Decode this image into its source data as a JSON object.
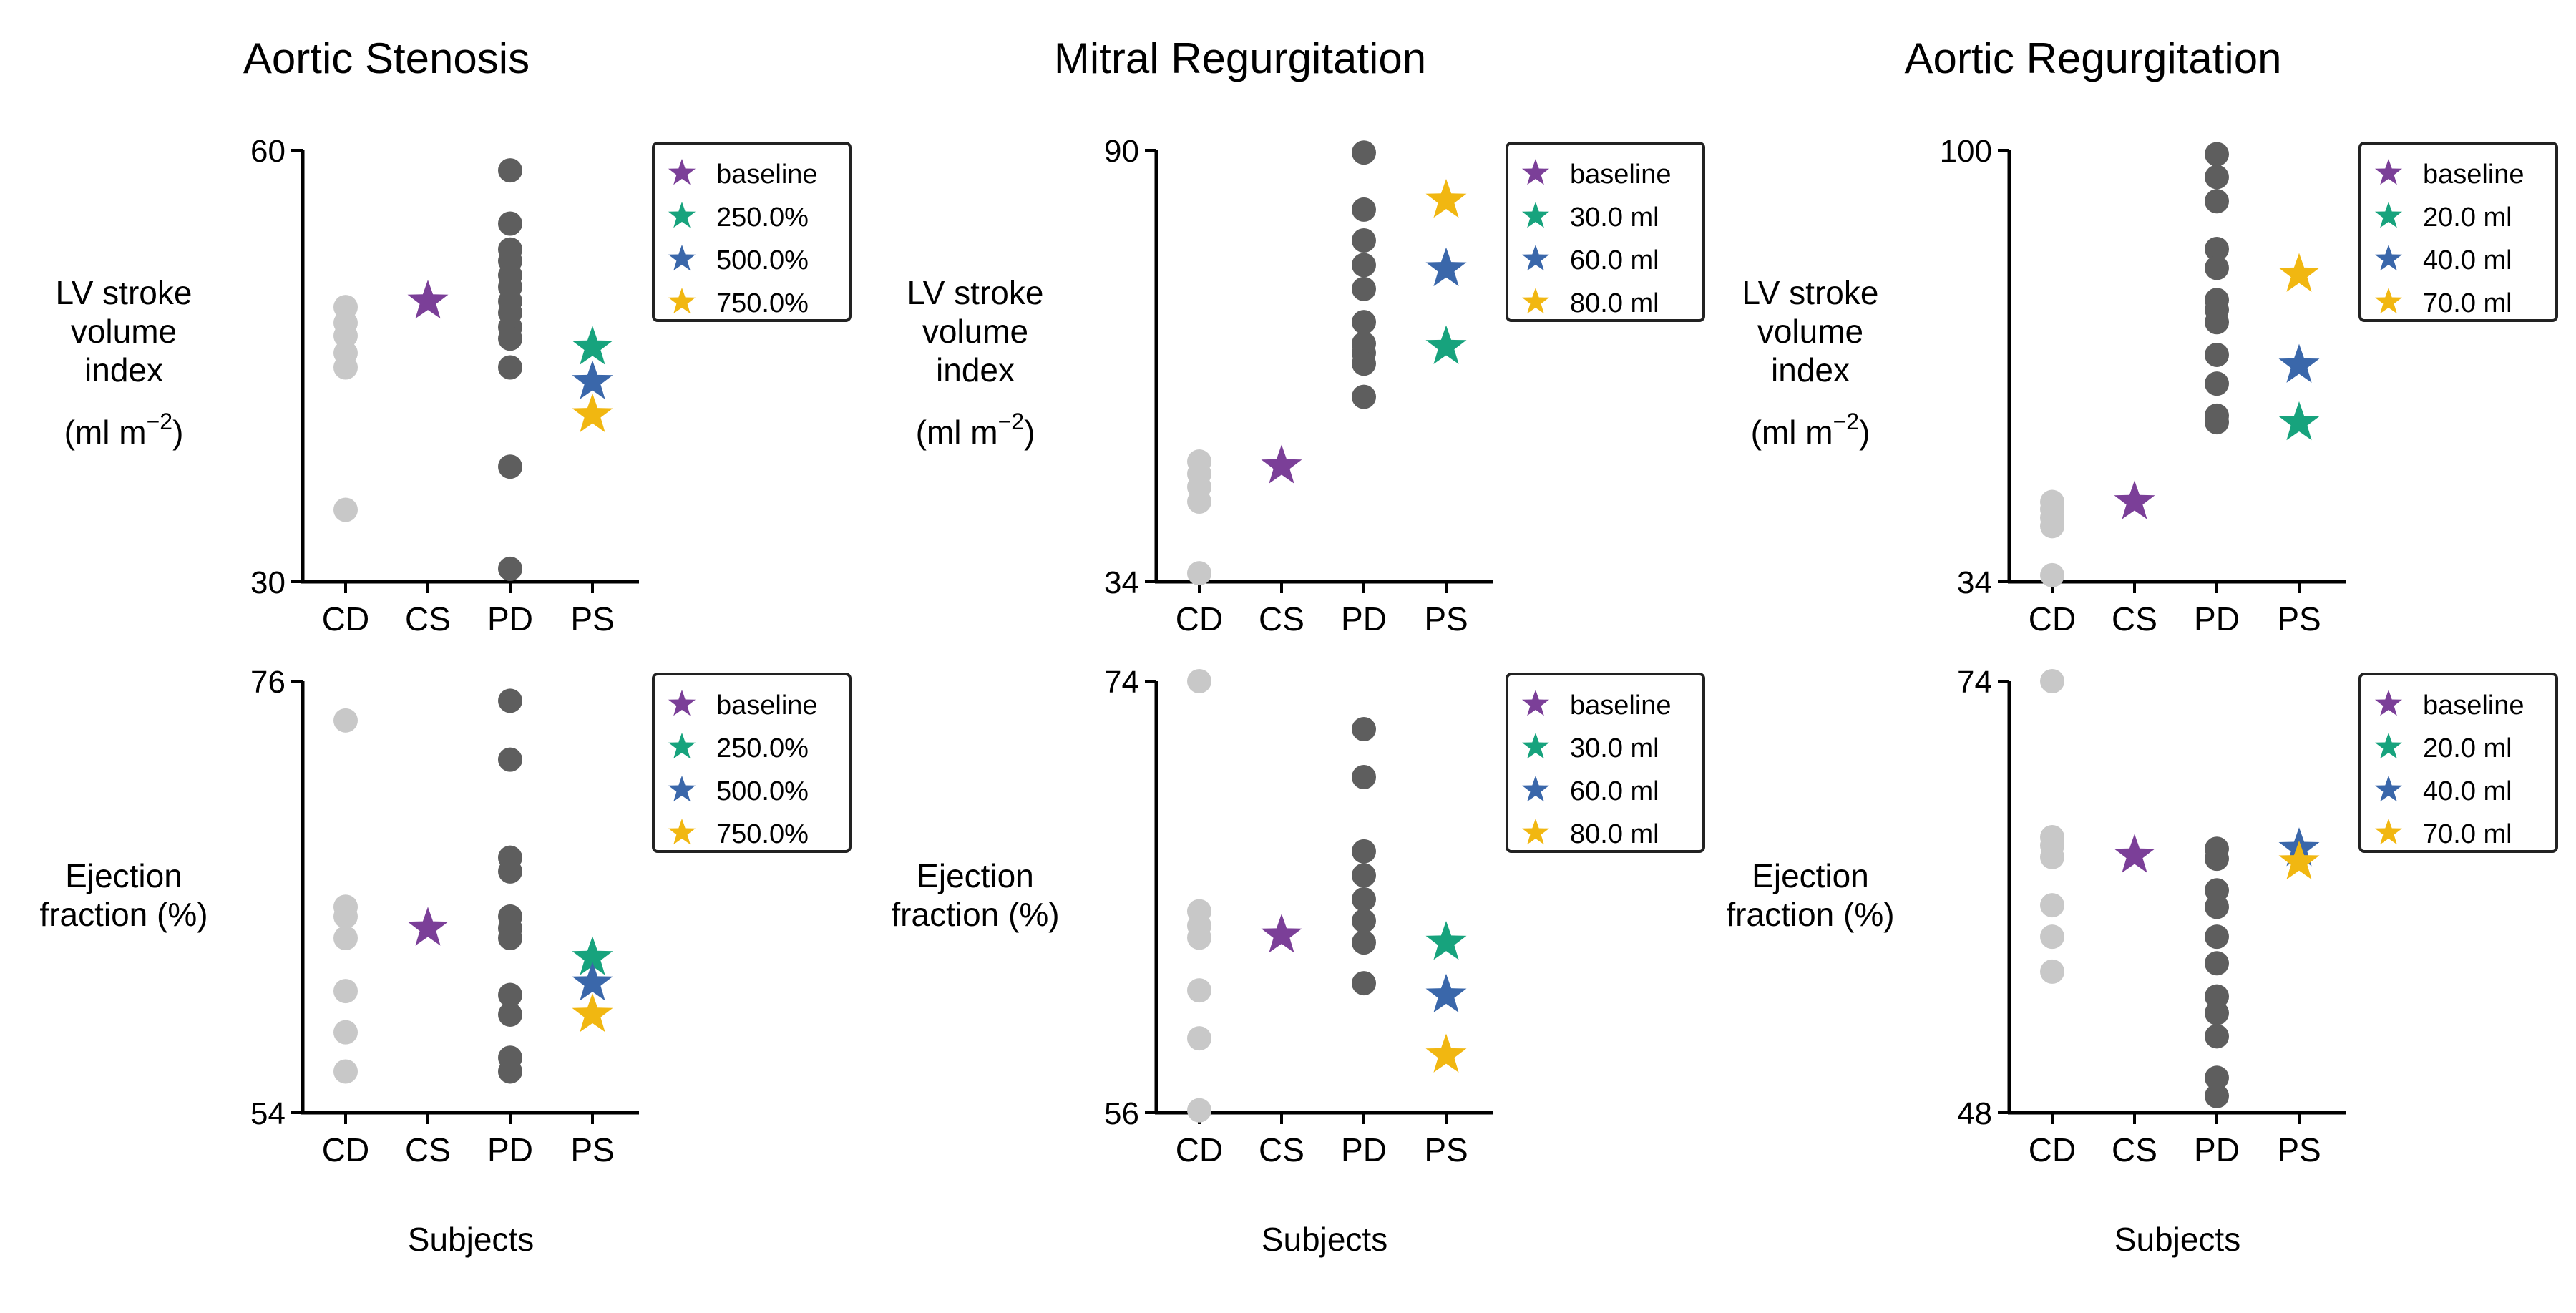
{
  "colors": {
    "control": "#c8c8c8",
    "patient": "#5e5e5e",
    "baseline": "#7b3f98",
    "level1": "#17a37d",
    "level2": "#3a67aa",
    "level3": "#f1b711",
    "axis": "#000000"
  },
  "shared_xlabel": "Subjects",
  "chart_data": [
    {
      "type": "scatter",
      "title": "Aortic Stenosis",
      "ylabel_lines": [
        "LV stroke",
        "volume",
        "index"
      ],
      "ylabel_unit": "(ml m",
      "ylabel_exp": "−2",
      "ylabel_close": ")",
      "categories": [
        "CD",
        "CS",
        "PD",
        "PS"
      ],
      "ylim": [
        30,
        60
      ],
      "yticks": [
        "30",
        "60"
      ],
      "CD": [
        49.1,
        48.0,
        47.1,
        45.9,
        44.9,
        35.0
      ],
      "CS": [
        49.5
      ],
      "PD": [
        58.6,
        54.9,
        53.1,
        52.3,
        51.3,
        50.5,
        49.5,
        48.7,
        47.7,
        46.9,
        44.9,
        38.0,
        30.9
      ],
      "PS": [
        {
          "legend_index": 1,
          "value": 46.3
        },
        {
          "legend_index": 2,
          "value": 43.9
        },
        {
          "legend_index": 3,
          "value": 41.6
        }
      ],
      "legend": [
        "baseline",
        "250.0%",
        "500.0%",
        "750.0%"
      ]
    },
    {
      "type": "scatter",
      "title": "Mitral Regurgitation",
      "ylabel_lines": [
        "LV stroke",
        "volume",
        "index"
      ],
      "ylabel_unit": "(ml m",
      "ylabel_exp": "−2",
      "ylabel_close": ")",
      "categories": [
        "CD",
        "CS",
        "PD",
        "PS"
      ],
      "ylim": [
        34,
        90
      ],
      "yticks": [
        "34",
        "90"
      ],
      "CD": [
        49.6,
        48.0,
        46.3,
        44.4,
        35.1
      ],
      "CS": [
        49.0
      ],
      "PD": [
        89.7,
        82.3,
        78.3,
        75.1,
        72.0,
        67.7,
        64.9,
        63.7,
        62.3,
        58.0
      ],
      "PS": [
        {
          "legend_index": 1,
          "value": 64.5
        },
        {
          "legend_index": 2,
          "value": 74.6
        },
        {
          "legend_index": 3,
          "value": 83.5
        }
      ],
      "legend": [
        "baseline",
        "30.0 ml",
        "60.0 ml",
        "80.0 ml"
      ]
    },
    {
      "type": "scatter",
      "title": "Aortic Regurgitation",
      "ylabel_lines": [
        "LV stroke",
        "volume",
        "index"
      ],
      "ylabel_unit": "(ml m",
      "ylabel_exp": "−2",
      "ylabel_close": ")",
      "categories": [
        "CD",
        "CS",
        "PD",
        "PS"
      ],
      "ylim": [
        34,
        100
      ],
      "yticks": [
        "34",
        "100"
      ],
      "CD": [
        46.2,
        45.1,
        43.8,
        42.5,
        35.0
      ],
      "CS": [
        46.2
      ],
      "PD": [
        99.4,
        95.9,
        92.2,
        84.9,
        82.0,
        77.1,
        75.6,
        73.7,
        68.7,
        64.3,
        59.4,
        58.4
      ],
      "PS": [
        {
          "legend_index": 1,
          "value": 58.3
        },
        {
          "legend_index": 2,
          "value": 67.1
        },
        {
          "legend_index": 3,
          "value": 81.0
        }
      ],
      "legend": [
        "baseline",
        "20.0 ml",
        "40.0 ml",
        "70.0 ml"
      ]
    },
    {
      "type": "scatter",
      "title": "",
      "ylabel_lines": [
        "Ejection",
        "fraction (%)"
      ],
      "categories": [
        "CD",
        "CS",
        "PD",
        "PS"
      ],
      "ylim": [
        54,
        76
      ],
      "yticks": [
        "54",
        "76"
      ],
      "CD": [
        74.0,
        64.5,
        64.0,
        62.9,
        60.2,
        58.1,
        56.1
      ],
      "CS": [
        63.4
      ],
      "PD": [
        75.0,
        72.0,
        67.0,
        66.3,
        64.0,
        63.4,
        62.9,
        60.0,
        59.0,
        56.8,
        56.1
      ],
      "PS": [
        {
          "legend_index": 1,
          "value": 61.9
        },
        {
          "legend_index": 2,
          "value": 60.6
        },
        {
          "legend_index": 3,
          "value": 59.0
        }
      ],
      "legend": [
        "baseline",
        "250.0%",
        "500.0%",
        "750.0%"
      ]
    },
    {
      "type": "scatter",
      "title": "",
      "ylabel_lines": [
        "Ejection",
        "fraction (%)"
      ],
      "categories": [
        "CD",
        "CS",
        "PD",
        "PS"
      ],
      "ylim": [
        56,
        74
      ],
      "yticks": [
        "56",
        "74"
      ],
      "CD": [
        74.0,
        64.4,
        63.8,
        63.3,
        61.1,
        59.1,
        56.1
      ],
      "CS": [
        63.4
      ],
      "PD": [
        72.0,
        70.0,
        66.9,
        65.9,
        64.9,
        64.0,
        63.1,
        61.4
      ],
      "PS": [
        {
          "legend_index": 1,
          "value": 63.1
        },
        {
          "legend_index": 2,
          "value": 60.9
        },
        {
          "legend_index": 3,
          "value": 58.4
        }
      ],
      "legend": [
        "baseline",
        "30.0 ml",
        "60.0 ml",
        "80.0 ml"
      ]
    },
    {
      "type": "scatter",
      "title": "",
      "ylabel_lines": [
        "Ejection",
        "fraction (%)"
      ],
      "categories": [
        "CD",
        "CS",
        "PD",
        "PS"
      ],
      "ylim": [
        48,
        74
      ],
      "yticks": [
        "48",
        "74"
      ],
      "CD": [
        74.0,
        64.6,
        64.1,
        63.4,
        60.5,
        58.6,
        56.5
      ],
      "CS": [
        63.5
      ],
      "PD": [
        63.9,
        63.3,
        61.4,
        60.4,
        58.6,
        57.0,
        55.0,
        54.0,
        52.6,
        50.1,
        49.0
      ],
      "PS": [
        {
          "legend_index": 2,
          "value": 63.9
        },
        {
          "legend_index": 3,
          "value": 63.1
        }
      ],
      "legend": [
        "baseline",
        "20.0 ml",
        "40.0 ml",
        "70.0 ml"
      ]
    }
  ]
}
